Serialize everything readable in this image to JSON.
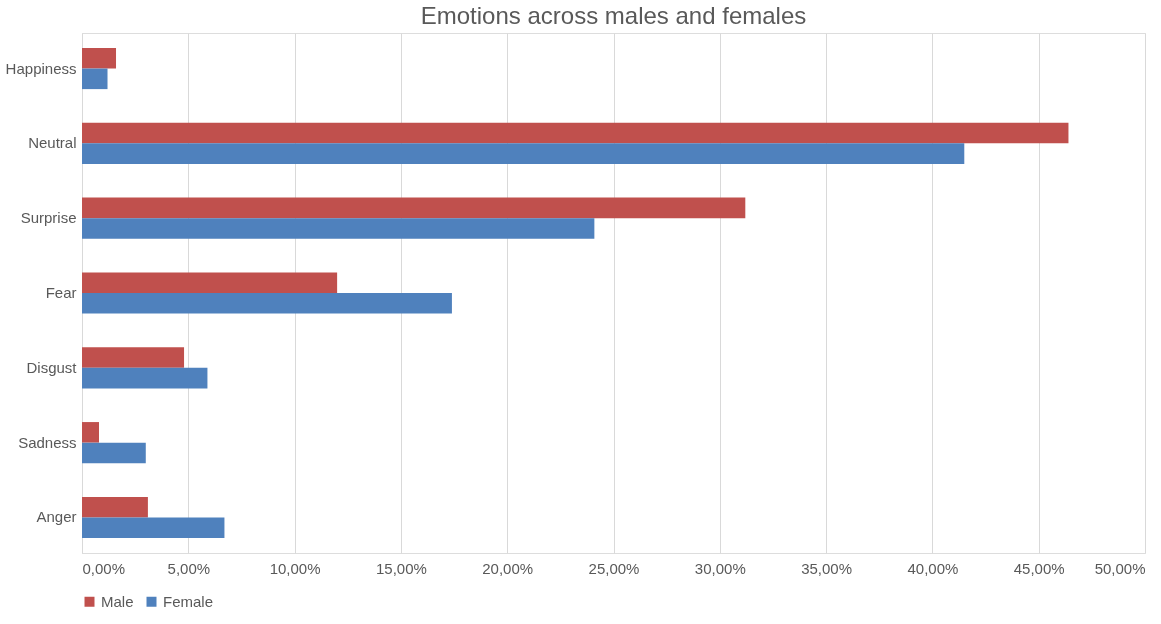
{
  "chart_data": {
    "type": "bar",
    "orientation": "horizontal",
    "title": "Emotions across males and females",
    "categories": [
      "Happiness",
      "Neutral",
      "Surprise",
      "Fear",
      "Disgust",
      "Sadness",
      "Anger"
    ],
    "series": [
      {
        "name": "Male",
        "color": "#c0504d",
        "values": [
          1.6,
          46.4,
          31.2,
          12.0,
          4.8,
          0.8,
          3.1
        ]
      },
      {
        "name": "Female",
        "color": "#4f81bd",
        "values": [
          1.2,
          41.5,
          24.1,
          17.4,
          5.9,
          3.0,
          6.7
        ]
      }
    ],
    "xlim": [
      0,
      50
    ],
    "xticks": [
      {
        "value": 0,
        "label": "0,00%"
      },
      {
        "value": 5,
        "label": "5,00%"
      },
      {
        "value": 10,
        "label": "10,00%"
      },
      {
        "value": 15,
        "label": "15,00%"
      },
      {
        "value": 20,
        "label": "20,00%"
      },
      {
        "value": 25,
        "label": "25,00%"
      },
      {
        "value": 30,
        "label": "30,00%"
      },
      {
        "value": 35,
        "label": "35,00%"
      },
      {
        "value": 40,
        "label": "40,00%"
      },
      {
        "value": 45,
        "label": "45,00%"
      },
      {
        "value": 50,
        "label": "50,00%"
      }
    ],
    "grid": "x",
    "legend": "bottom"
  }
}
